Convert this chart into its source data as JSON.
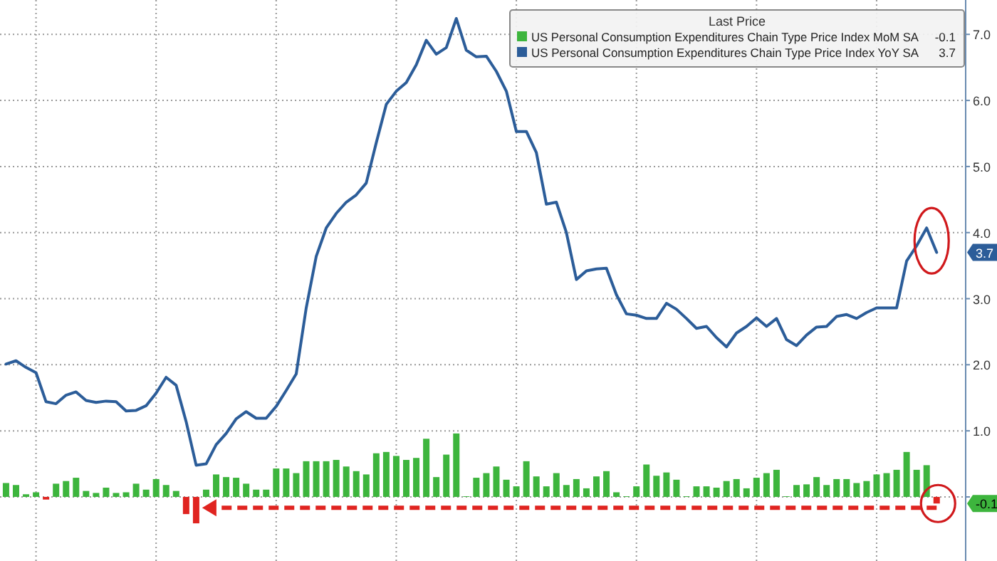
{
  "chart_data": {
    "type": "bar",
    "legend_title": "Last Price",
    "legend": "top right",
    "grid": true,
    "categories": [
      null,
      null,
      null,
      null,
      null,
      null,
      null,
      null,
      null,
      null,
      null,
      null,
      null,
      null,
      null,
      null,
      null,
      null,
      null,
      null,
      null,
      null,
      null,
      null,
      null,
      null,
      null,
      null,
      null,
      null,
      null,
      null,
      null,
      null,
      null,
      null,
      null,
      null,
      null,
      null,
      null,
      null,
      null,
      null,
      null,
      null,
      null,
      null,
      null,
      null,
      null,
      null,
      null,
      null,
      null,
      null,
      null,
      null,
      null,
      null,
      null,
      null,
      null,
      null,
      null,
      null,
      null,
      null,
      null,
      null,
      null,
      null,
      null,
      null,
      null,
      null,
      null,
      null,
      null,
      null,
      null,
      null,
      null,
      null,
      null,
      null,
      null,
      null,
      null,
      null,
      null,
      null,
      null,
      null
    ],
    "ylim": [
      -0.97,
      7.52
    ],
    "yticks": [
      {
        "value": 0,
        "label": null
      },
      {
        "value": 1,
        "label": "1.0"
      },
      {
        "value": 2,
        "label": "2.0"
      },
      {
        "value": 3,
        "label": "3.0"
      },
      {
        "value": 4,
        "label": "4.0"
      },
      {
        "value": 5,
        "label": "5.0"
      },
      {
        "value": 6,
        "label": "6.0"
      },
      {
        "value": 7,
        "label": "7.0"
      }
    ],
    "series": [
      {
        "name": "US Personal Consumption Expenditures Chain Type Price Index MoM SA",
        "color": "#3db53d",
        "values": [
          0.21,
          0.18,
          0.04,
          0.07,
          -0.04,
          0.2,
          0.24,
          0.29,
          0.09,
          0.06,
          0.14,
          0.06,
          0.07,
          0.2,
          0.11,
          0.27,
          0.18,
          0.09,
          -0.26,
          -0.4,
          0.11,
          0.34,
          0.3,
          0.29,
          0.2,
          0.11,
          0.11,
          0.43,
          0.43,
          0.36,
          0.54,
          0.54,
          0.54,
          0.56,
          0.46,
          0.39,
          0.34,
          0.66,
          0.68,
          0.62,
          0.56,
          0.59,
          0.88,
          0.3,
          0.64,
          0.96,
          0.01,
          0.29,
          0.36,
          0.46,
          0.26,
          0.16,
          0.54,
          0.31,
          0.16,
          0.36,
          0.18,
          0.27,
          0.13,
          0.31,
          0.39,
          0.07,
          0.01,
          0.16,
          0.49,
          0.32,
          0.37,
          0.26,
          0.01,
          0.16,
          0.16,
          0.14,
          0.24,
          0.27,
          0.13,
          0.29,
          0.36,
          0.41,
          0.01,
          0.18,
          0.19,
          0.3,
          0.18,
          0.27,
          0.27,
          0.21,
          0.24,
          0.34,
          0.36,
          0.41,
          0.68,
          0.41,
          0.48,
          -0.1
        ],
        "colors": [
          "#3db53d",
          "#3db53d",
          "#3db53d",
          "#3db53d",
          "#e02420",
          "#3db53d",
          "#3db53d",
          "#3db53d",
          "#3db53d",
          "#3db53d",
          "#3db53d",
          "#3db53d",
          "#3db53d",
          "#3db53d",
          "#3db53d",
          "#3db53d",
          "#3db53d",
          "#3db53d",
          "#e02420",
          "#e02420",
          "#3db53d",
          "#3db53d",
          "#3db53d",
          "#3db53d",
          "#3db53d",
          "#3db53d",
          "#3db53d",
          "#3db53d",
          "#3db53d",
          "#3db53d",
          "#3db53d",
          "#3db53d",
          "#3db53d",
          "#3db53d",
          "#3db53d",
          "#3db53d",
          "#3db53d",
          "#3db53d",
          "#3db53d",
          "#3db53d",
          "#3db53d",
          "#3db53d",
          "#3db53d",
          "#3db53d",
          "#3db53d",
          "#3db53d",
          "#3db53d",
          "#3db53d",
          "#3db53d",
          "#3db53d",
          "#3db53d",
          "#3db53d",
          "#3db53d",
          "#3db53d",
          "#3db53d",
          "#3db53d",
          "#3db53d",
          "#3db53d",
          "#3db53d",
          "#3db53d",
          "#3db53d",
          "#3db53d",
          "#3db53d",
          "#3db53d",
          "#3db53d",
          "#3db53d",
          "#3db53d",
          "#3db53d",
          "#3db53d",
          "#3db53d",
          "#3db53d",
          "#3db53d",
          "#3db53d",
          "#3db53d",
          "#3db53d",
          "#3db53d",
          "#3db53d",
          "#3db53d",
          "#3db53d",
          "#3db53d",
          "#3db53d",
          "#3db53d",
          "#3db53d",
          "#3db53d",
          "#3db53d",
          "#3db53d",
          "#3db53d",
          "#3db53d",
          "#3db53d",
          "#3db53d",
          "#3db53d",
          "#3db53d",
          "#3db53d",
          "#e02420"
        ]
      },
      {
        "name": "US Personal Consumption Expenditures Chain Type Price Index YoY SA",
        "type": "line",
        "color": "#2c5d99",
        "values": [
          2.01,
          2.06,
          1.96,
          1.88,
          1.44,
          1.41,
          1.54,
          1.59,
          1.46,
          1.43,
          1.45,
          1.44,
          1.3,
          1.31,
          1.38,
          1.57,
          1.81,
          1.69,
          1.14,
          0.48,
          0.5,
          0.79,
          0.96,
          1.18,
          1.29,
          1.19,
          1.19,
          1.37,
          1.61,
          1.86,
          2.86,
          3.64,
          4.07,
          4.29,
          4.46,
          4.57,
          4.75,
          5.36,
          5.94,
          6.14,
          6.27,
          6.54,
          6.91,
          6.7,
          6.8,
          7.24,
          6.76,
          6.66,
          6.67,
          6.44,
          6.14,
          5.53,
          5.53,
          5.21,
          4.43,
          4.46,
          4.0,
          3.29,
          3.42,
          3.45,
          3.46,
          3.06,
          2.77,
          2.75,
          2.7,
          2.7,
          2.93,
          2.84,
          2.7,
          2.55,
          2.58,
          2.41,
          2.27,
          2.48,
          2.58,
          2.71,
          2.58,
          2.7,
          2.38,
          2.29,
          2.45,
          2.57,
          2.58,
          2.73,
          2.76,
          2.7,
          2.79,
          2.86,
          2.86,
          2.86,
          3.57,
          3.8,
          4.07,
          3.7
        ]
      }
    ],
    "annotations": [
      "-0.1",
      "3.7"
    ]
  }
}
